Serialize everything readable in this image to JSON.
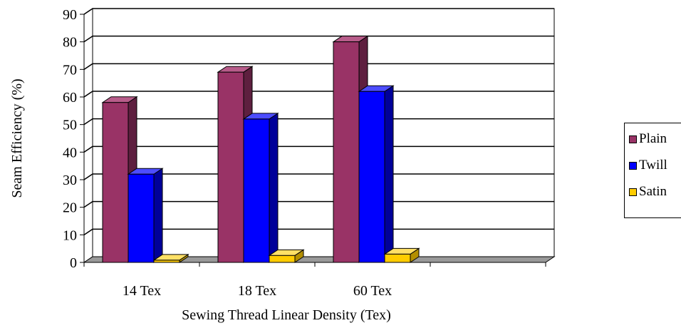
{
  "chart_data": {
    "type": "bar",
    "ylabel": "Seam Efficiency (%)",
    "xlabel": "Sewing Thread Linear Density (Tex)",
    "categories": [
      "14 Tex",
      "18 Tex",
      "60 Tex",
      ""
    ],
    "ylim": [
      0,
      90
    ],
    "yticks": [
      "0",
      "10",
      "20",
      "30",
      "40",
      "50",
      "60",
      "70",
      "80",
      "90"
    ],
    "grid": true,
    "legend_position": "right",
    "series": [
      {
        "name": "Plain",
        "values": [
          58,
          69,
          80,
          null
        ],
        "color": "#993366",
        "side_color": "#5e1f3f",
        "top_color": "#b85c8a"
      },
      {
        "name": "Twill",
        "values": [
          32,
          52,
          62,
          null
        ],
        "color": "#0000ff",
        "side_color": "#000099",
        "top_color": "#4d4dff"
      },
      {
        "name": "Satin",
        "values": [
          0.8,
          2.5,
          3,
          null
        ],
        "color": "#ffcc00",
        "side_color": "#b38f00",
        "top_color": "#ffe066"
      }
    ]
  }
}
